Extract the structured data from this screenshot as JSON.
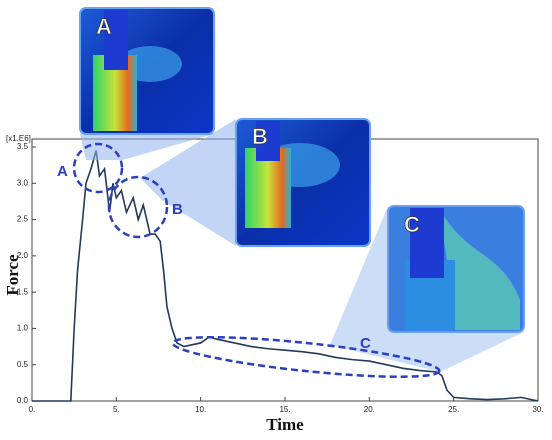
{
  "chart_data": {
    "type": "line",
    "x_label": "Time",
    "y_label": "Force",
    "y_unit": "[x1.E6]",
    "annotations": [
      "A",
      "B",
      "C"
    ],
    "inset_labels": [
      "A",
      "B",
      "C"
    ],
    "xlim": [
      0,
      30
    ],
    "ylim": [
      0,
      3.5
    ],
    "xticks": [
      {
        "value": 0,
        "label": "0."
      },
      {
        "value": 5,
        "label": "5."
      },
      {
        "value": 10,
        "label": "10."
      },
      {
        "value": 15,
        "label": "15."
      },
      {
        "value": 20,
        "label": "20."
      },
      {
        "value": 25,
        "label": "25."
      },
      {
        "value": 30,
        "label": "30."
      }
    ],
    "yticks": [
      {
        "value": 0,
        "label": "0.0"
      },
      0.5,
      {
        "value": 1,
        "label": "1.0"
      },
      1.5,
      {
        "value": 2,
        "label": "2.0"
      },
      2.5,
      {
        "value": 3,
        "label": "3.0"
      },
      3.5
    ],
    "series": [
      {
        "color": "#1f3a5a",
        "x": [
          0,
          2.3,
          2.5,
          2.7,
          3.0,
          3.2,
          3.5,
          3.8,
          4.0,
          4.3,
          4.6,
          4.8,
          5.0,
          5.3,
          5.6,
          6.0,
          6.3,
          6.6,
          7.0,
          7.3,
          7.6,
          7.8,
          8.0,
          8.3,
          8.6,
          9.0,
          10,
          10.5,
          11,
          12,
          13,
          14,
          15,
          16,
          17,
          18,
          19,
          20,
          21,
          22,
          23,
          24,
          24.3,
          24.6,
          25,
          26,
          27,
          28,
          29,
          30
        ],
        "values": [
          0,
          0,
          1.0,
          1.8,
          2.5,
          3.0,
          3.2,
          3.45,
          3.1,
          3.2,
          2.6,
          3.0,
          2.8,
          2.9,
          2.6,
          2.8,
          2.5,
          2.7,
          2.3,
          2.3,
          2.2,
          1.8,
          1.3,
          1.0,
          0.8,
          0.75,
          0.8,
          0.88,
          0.85,
          0.8,
          0.75,
          0.72,
          0.7,
          0.68,
          0.65,
          0.6,
          0.57,
          0.55,
          0.5,
          0.45,
          0.42,
          0.4,
          0.35,
          0.15,
          0.05,
          0.03,
          0.02,
          0.03,
          0.05,
          0
        ]
      }
    ]
  }
}
